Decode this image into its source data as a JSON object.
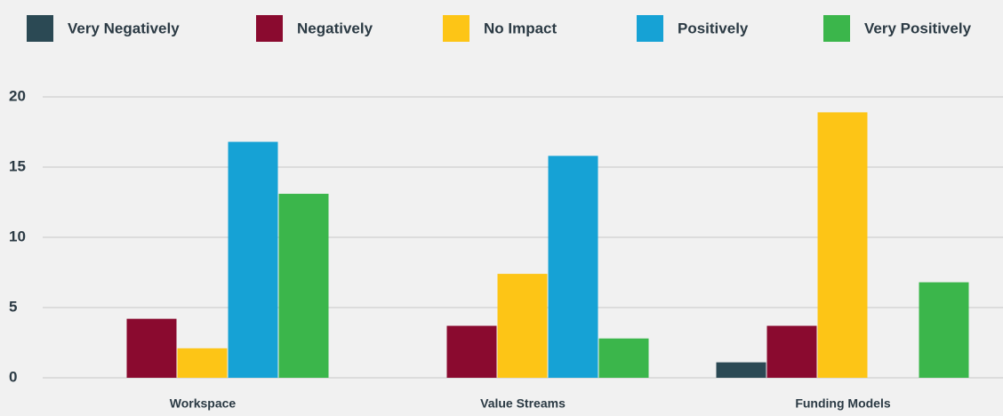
{
  "chart_data": {
    "type": "bar",
    "categories": [
      "Workspace",
      "Value Streams",
      "Funding Models"
    ],
    "series": [
      {
        "name": "Very Negatively",
        "color": "#2b4954",
        "values": [
          0,
          0,
          1.1
        ]
      },
      {
        "name": "Negatively",
        "color": "#8a0a2f",
        "values": [
          4.2,
          3.7,
          3.7
        ]
      },
      {
        "name": "No Impact",
        "color": "#fdc516",
        "values": [
          2.1,
          7.4,
          18.9
        ]
      },
      {
        "name": "Positively",
        "color": "#16a2d5",
        "values": [
          16.8,
          15.8,
          0
        ]
      },
      {
        "name": "Very Positively",
        "color": "#3bb64b",
        "values": [
          13.1,
          2.8,
          6.8
        ]
      }
    ],
    "ylim": [
      0,
      20
    ],
    "yticks": [
      0,
      5,
      10,
      15,
      20
    ],
    "grid": true,
    "legend": "top"
  }
}
